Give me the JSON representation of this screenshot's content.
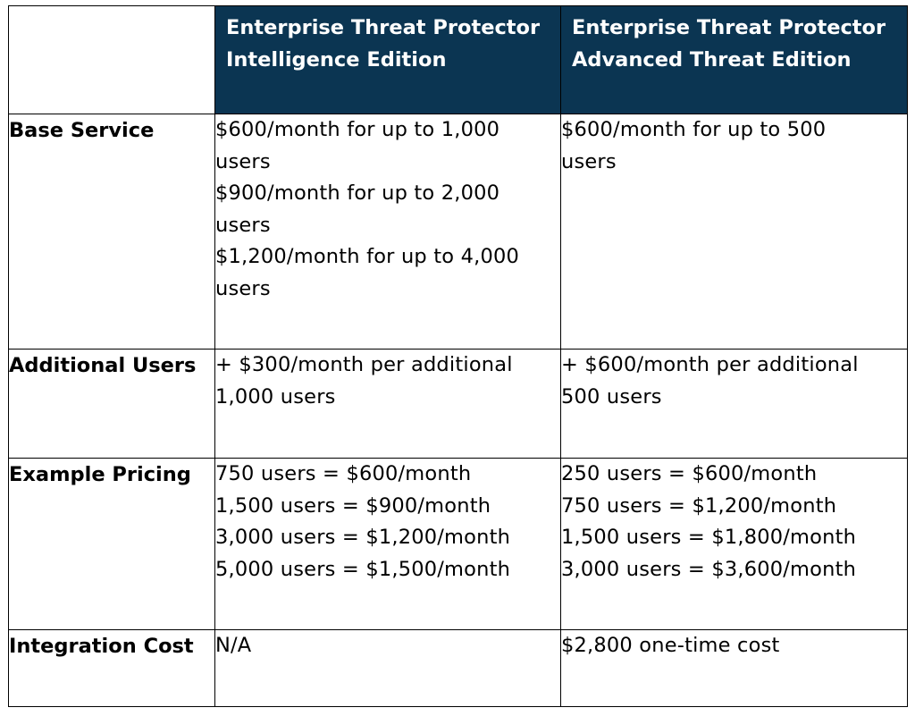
{
  "table": {
    "header": {
      "intelligence": [
        "Enterprise Threat Protector",
        "Intelligence Edition"
      ],
      "advanced": [
        "Enterprise Threat Protector",
        "Advanced Threat Edition"
      ]
    },
    "rows": {
      "base_service": {
        "label": "Base Service",
        "intelligence": [
          "$600/month for up to 1,000",
          "users",
          "$900/month for up to 2,000",
          "users",
          "$1,200/month for up to 4,000",
          "users"
        ],
        "advanced": [
          "$600/month for up to 500",
          "users"
        ]
      },
      "additional_users": {
        "label": "Additional Users",
        "intelligence": [
          "+ $300/month per additional",
          "1,000 users"
        ],
        "advanced": [
          "+ $600/month per additional",
          "500 users"
        ]
      },
      "example_pricing": {
        "label": "Example Pricing",
        "intelligence": [
          "750 users = $600/month",
          "1,500 users = $900/month",
          "3,000 users = $1,200/month",
          "5,000 users = $1,500/month"
        ],
        "advanced": [
          "250 users = $600/month",
          "750 users = $1,200/month",
          "1,500 users = $1,800/month",
          "3,000 users = $3,600/month"
        ]
      },
      "integration_cost": {
        "label": "Integration Cost",
        "intelligence": [
          "N/A"
        ],
        "advanced": [
          "$2,800 one-time cost"
        ]
      }
    }
  },
  "colors": {
    "header_background": "#0b3552",
    "header_text": "#ffffff",
    "border": "#000000"
  }
}
